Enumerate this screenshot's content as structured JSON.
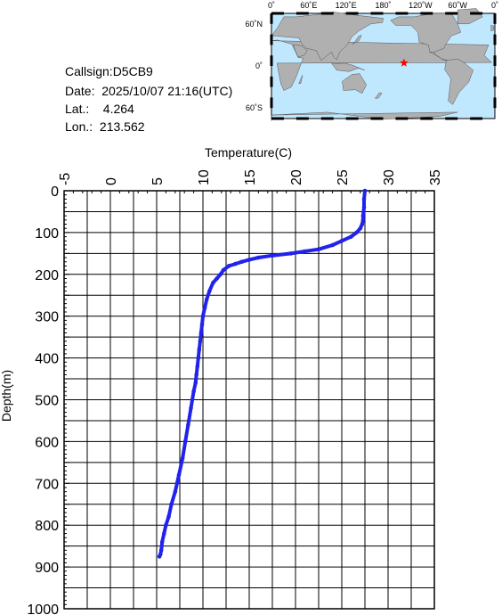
{
  "info": {
    "callsign": "Callsign:D5CB9",
    "date": "Date:  2025/10/07 21:16(UTC)",
    "lat": "Lat.:    4.264",
    "lon": "Lon.:  213.562"
  },
  "map": {
    "lon_labels": [
      "0˚",
      "60˚E",
      "120˚E",
      "180˚",
      "120˚W",
      "60˚W",
      "0˚"
    ],
    "lat_labels": [
      "60˚N",
      "0˚",
      "60˚S"
    ],
    "station_lat": 4.264,
    "station_lon": 213.562,
    "colors": {
      "ocean": "#bfe8ff",
      "land": "#b0b0b0",
      "marker": "#ff0000"
    }
  },
  "chart_data": {
    "type": "line",
    "xlabel": "Temperature(C)",
    "ylabel": "Depth(m)",
    "xlim": [
      -5,
      35
    ],
    "ylim": [
      1000,
      0
    ],
    "x_ticks": [
      "-5",
      "0",
      "5",
      "10",
      "15",
      "20",
      "25",
      "30",
      "35"
    ],
    "y_ticks": [
      "0",
      "100",
      "200",
      "300",
      "400",
      "500",
      "600",
      "700",
      "800",
      "900",
      "1000"
    ],
    "grid": true,
    "series_color": "#2222ee",
    "series": [
      {
        "temperature": [
          27.5,
          27.4,
          27.4,
          27.3,
          27.3,
          27.2,
          27.0,
          26.6,
          26.0,
          25.0,
          24.0,
          22.5,
          21.0,
          19.5,
          17.5,
          16.0,
          15.0,
          14.2,
          13.5,
          12.8,
          12.2,
          11.9,
          11.5,
          11.1,
          10.7,
          10.4,
          10.2,
          10.0,
          9.9,
          9.8,
          9.7,
          9.6,
          9.5,
          9.4,
          9.3,
          9.2,
          9.0,
          8.7,
          8.4,
          8.1,
          7.8,
          7.4,
          7.0,
          6.6,
          6.3,
          6.0,
          5.8,
          5.6,
          5.5,
          5.4,
          5.3
        ],
        "depth": [
          0,
          20,
          40,
          60,
          70,
          80,
          90,
          100,
          110,
          120,
          130,
          140,
          145,
          150,
          155,
          160,
          165,
          170,
          175,
          180,
          190,
          200,
          210,
          220,
          240,
          260,
          280,
          300,
          320,
          340,
          360,
          380,
          400,
          420,
          440,
          460,
          480,
          520,
          560,
          600,
          640,
          680,
          720,
          750,
          780,
          800,
          820,
          840,
          860,
          870,
          875
        ]
      }
    ]
  }
}
